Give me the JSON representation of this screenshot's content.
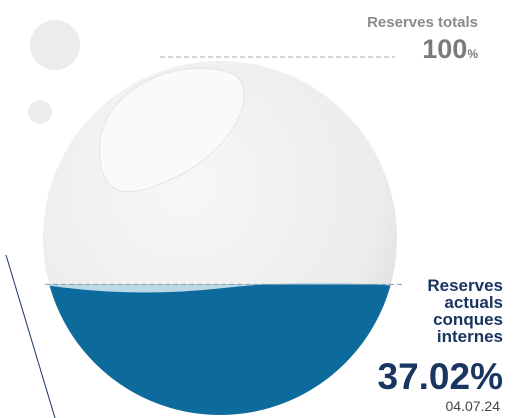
{
  "chart_data": {
    "type": "fill",
    "total_label": "Reserves totals",
    "total_value": 100,
    "unit": "%",
    "label": "Reserves actuals conques internes",
    "value": 37.02,
    "value_label": "37.02%",
    "date": "04.07.24",
    "ylim": [
      0,
      100
    ],
    "color": "#0d6a9c"
  }
}
